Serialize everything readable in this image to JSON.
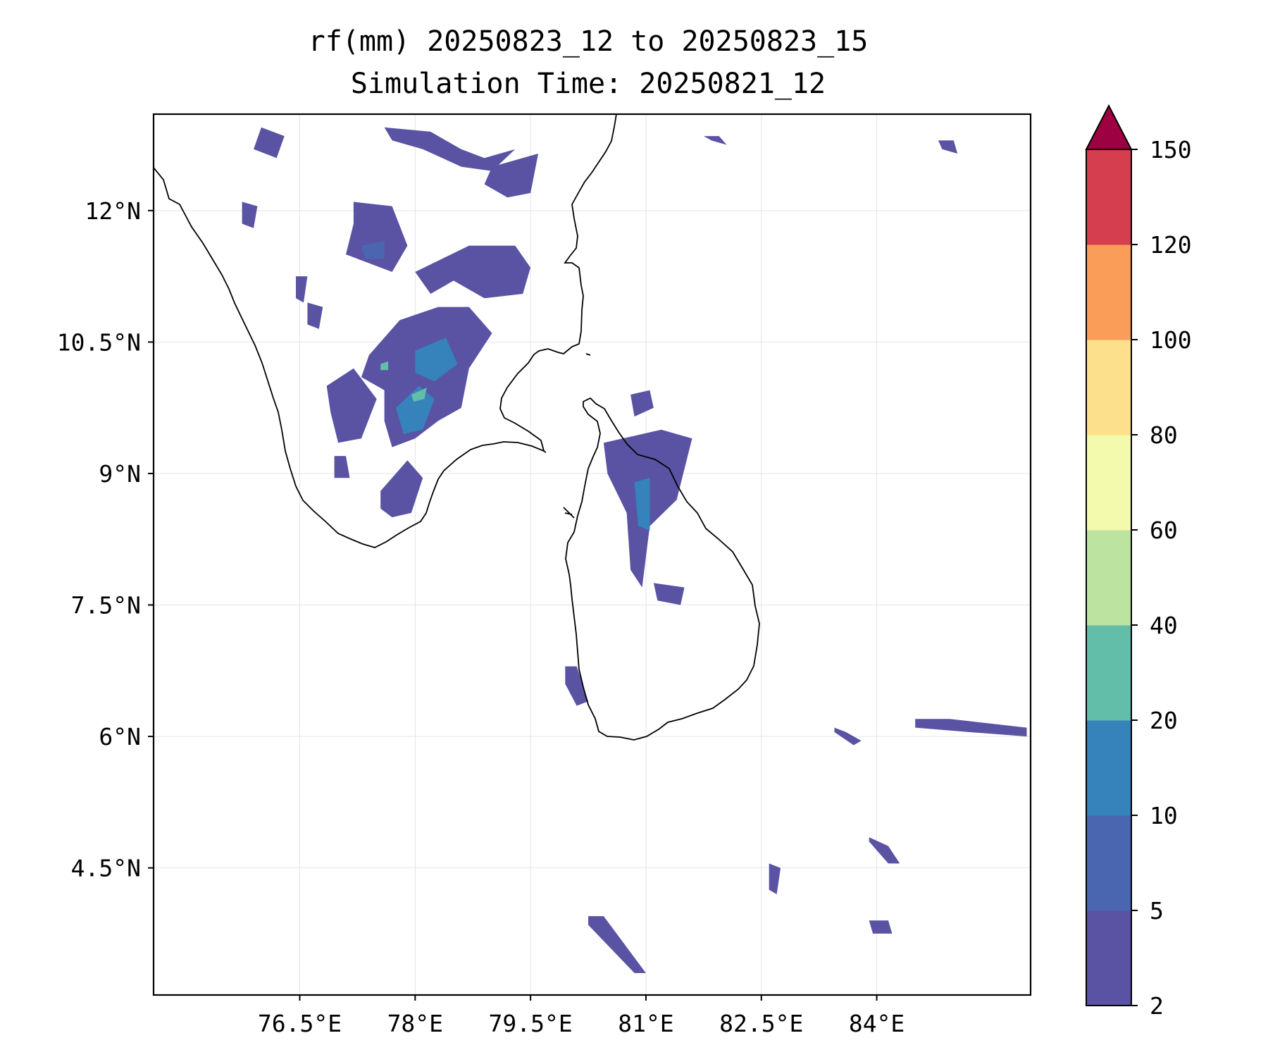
{
  "title": {
    "line1": "rf(mm) 20250823_12 to 20250823_15",
    "line2": "Simulation Time: 20250821_12"
  },
  "map": {
    "lon_range": [
      74.6,
      86.0
    ],
    "lat_range": [
      3.05,
      13.1
    ],
    "lon_ticks": [
      {
        "value": 76.5,
        "label": "76.5°E"
      },
      {
        "value": 78.0,
        "label": "78°E"
      },
      {
        "value": 79.5,
        "label": "79.5°E"
      },
      {
        "value": 81.0,
        "label": "81°E"
      },
      {
        "value": 82.5,
        "label": "82.5°E"
      },
      {
        "value": 84.0,
        "label": "84°E"
      }
    ],
    "lat_ticks": [
      {
        "value": 12.0,
        "label": "12°N"
      },
      {
        "value": 10.5,
        "label": "10.5°N"
      },
      {
        "value": 9.0,
        "label": "9°N"
      },
      {
        "value": 7.5,
        "label": "7.5°N"
      },
      {
        "value": 6.0,
        "label": "6°N"
      },
      {
        "value": 4.5,
        "label": "4.5°N"
      }
    ],
    "gridlines": true
  },
  "colorbar": {
    "levels": [
      2,
      5,
      10,
      20,
      40,
      60,
      80,
      100,
      120,
      150
    ],
    "labels": [
      "2",
      "5",
      "10",
      "20",
      "40",
      "60",
      "80",
      "100",
      "120",
      "150"
    ],
    "colors": [
      "#5a53a3",
      "#4a66b0",
      "#3682bb",
      "#62bda9",
      "#bde3a1",
      "#f3f9ad",
      "#fde08b",
      "#f99d59",
      "#d53e4f"
    ],
    "extend_color": "#9e0142"
  },
  "chart_data": {
    "type": "filled-contour-map",
    "variable": "rf(mm)",
    "period": "20250823_12 to 20250823_15",
    "simulation_time": "20250821_12",
    "xlim": [
      74.6,
      86.0
    ],
    "ylim": [
      3.05,
      13.1
    ],
    "rain_areas": [
      {
        "level": 2,
        "points": [
          [
            76.0,
            12.95
          ],
          [
            76.3,
            12.85
          ],
          [
            76.2,
            12.6
          ],
          [
            75.9,
            12.7
          ]
        ]
      },
      {
        "level": 2,
        "points": [
          [
            77.6,
            12.95
          ],
          [
            78.2,
            12.9
          ],
          [
            78.6,
            12.7
          ],
          [
            78.9,
            12.6
          ],
          [
            79.3,
            12.7
          ],
          [
            79.0,
            12.45
          ],
          [
            78.6,
            12.5
          ],
          [
            78.1,
            12.7
          ],
          [
            77.7,
            12.8
          ]
        ]
      },
      {
        "level": 2,
        "points": [
          [
            79.0,
            12.5
          ],
          [
            79.6,
            12.65
          ],
          [
            79.5,
            12.2
          ],
          [
            79.2,
            12.15
          ],
          [
            78.9,
            12.3
          ]
        ]
      },
      {
        "level": 2,
        "points": [
          [
            75.75,
            12.1
          ],
          [
            75.95,
            12.05
          ],
          [
            75.9,
            11.8
          ],
          [
            75.75,
            11.85
          ]
        ]
      },
      {
        "level": 2,
        "points": [
          [
            77.2,
            12.1
          ],
          [
            77.7,
            12.05
          ],
          [
            77.9,
            11.6
          ],
          [
            77.7,
            11.3
          ],
          [
            77.1,
            11.5
          ],
          [
            77.2,
            11.85
          ]
        ]
      },
      {
        "level": 5,
        "points": [
          [
            77.3,
            11.6
          ],
          [
            77.6,
            11.65
          ],
          [
            77.6,
            11.45
          ],
          [
            77.35,
            11.45
          ]
        ]
      },
      {
        "level": 2,
        "points": [
          [
            78.0,
            11.3
          ],
          [
            78.7,
            11.6
          ],
          [
            79.3,
            11.6
          ],
          [
            79.5,
            11.35
          ],
          [
            79.4,
            11.05
          ],
          [
            78.9,
            11.0
          ],
          [
            78.5,
            11.2
          ],
          [
            78.2,
            11.05
          ]
        ]
      },
      {
        "level": 2,
        "points": [
          [
            76.45,
            11.25
          ],
          [
            76.6,
            11.25
          ],
          [
            76.55,
            10.95
          ],
          [
            76.45,
            11.0
          ]
        ]
      },
      {
        "level": 2,
        "points": [
          [
            76.6,
            10.95
          ],
          [
            76.8,
            10.9
          ],
          [
            76.75,
            10.65
          ],
          [
            76.6,
            10.7
          ]
        ]
      },
      {
        "level": 2,
        "points": [
          [
            77.4,
            10.35
          ],
          [
            77.8,
            10.75
          ],
          [
            78.3,
            10.9
          ],
          [
            78.7,
            10.9
          ],
          [
            79.0,
            10.6
          ],
          [
            78.7,
            10.2
          ],
          [
            78.6,
            9.75
          ],
          [
            78.3,
            9.6
          ],
          [
            78.0,
            9.4
          ],
          [
            77.7,
            9.3
          ],
          [
            77.6,
            9.6
          ],
          [
            77.6,
            9.95
          ],
          [
            77.3,
            10.1
          ]
        ]
      },
      {
        "level": 10,
        "points": [
          [
            78.0,
            10.4
          ],
          [
            78.4,
            10.55
          ],
          [
            78.55,
            10.25
          ],
          [
            78.25,
            10.05
          ],
          [
            78.0,
            10.15
          ]
        ]
      },
      {
        "level": 10,
        "points": [
          [
            77.75,
            9.75
          ],
          [
            78.05,
            10.0
          ],
          [
            78.25,
            9.85
          ],
          [
            78.1,
            9.5
          ],
          [
            77.85,
            9.45
          ]
        ]
      },
      {
        "level": 20,
        "points": [
          [
            77.95,
            9.9
          ],
          [
            78.15,
            9.98
          ],
          [
            78.12,
            9.85
          ],
          [
            77.98,
            9.82
          ]
        ]
      },
      {
        "level": 20,
        "points": [
          [
            77.55,
            10.25
          ],
          [
            77.65,
            10.28
          ],
          [
            77.65,
            10.18
          ],
          [
            77.55,
            10.18
          ]
        ]
      },
      {
        "level": 2,
        "points": [
          [
            76.85,
            10.0
          ],
          [
            77.2,
            10.2
          ],
          [
            77.5,
            9.85
          ],
          [
            77.3,
            9.4
          ],
          [
            77.0,
            9.35
          ],
          [
            76.9,
            9.7
          ]
        ]
      },
      {
        "level": 2,
        "points": [
          [
            76.95,
            9.2
          ],
          [
            77.1,
            9.2
          ],
          [
            77.15,
            8.95
          ],
          [
            76.95,
            8.95
          ]
        ]
      },
      {
        "level": 2,
        "points": [
          [
            77.55,
            8.8
          ],
          [
            77.9,
            9.15
          ],
          [
            78.1,
            8.95
          ],
          [
            77.95,
            8.55
          ],
          [
            77.7,
            8.5
          ],
          [
            77.55,
            8.6
          ]
        ]
      },
      {
        "level": 2,
        "points": [
          [
            80.45,
            9.35
          ],
          [
            81.2,
            9.5
          ],
          [
            81.6,
            9.4
          ],
          [
            81.4,
            8.7
          ],
          [
            81.05,
            8.4
          ],
          [
            80.95,
            7.7
          ],
          [
            80.8,
            7.9
          ],
          [
            80.75,
            8.55
          ],
          [
            80.5,
            9.0
          ]
        ]
      },
      {
        "level": 10,
        "points": [
          [
            80.85,
            8.9
          ],
          [
            81.05,
            8.95
          ],
          [
            81.05,
            8.35
          ],
          [
            80.9,
            8.4
          ]
        ]
      },
      {
        "level": 2,
        "points": [
          [
            80.8,
            9.9
          ],
          [
            81.05,
            9.95
          ],
          [
            81.1,
            9.75
          ],
          [
            80.85,
            9.65
          ]
        ]
      },
      {
        "level": 2,
        "points": [
          [
            81.1,
            7.75
          ],
          [
            81.5,
            7.7
          ],
          [
            81.45,
            7.5
          ],
          [
            81.15,
            7.55
          ]
        ]
      },
      {
        "level": 2,
        "points": [
          [
            79.95,
            6.8
          ],
          [
            80.1,
            6.8
          ],
          [
            80.25,
            6.4
          ],
          [
            80.1,
            6.35
          ],
          [
            79.95,
            6.6
          ]
        ]
      },
      {
        "level": 2,
        "points": [
          [
            81.75,
            12.85
          ],
          [
            81.95,
            12.85
          ],
          [
            82.05,
            12.75
          ],
          [
            81.85,
            12.8
          ]
        ]
      },
      {
        "level": 2,
        "points": [
          [
            84.8,
            12.8
          ],
          [
            85.0,
            12.8
          ],
          [
            85.05,
            12.65
          ],
          [
            84.85,
            12.7
          ]
        ]
      },
      {
        "level": 2,
        "points": [
          [
            84.5,
            6.2
          ],
          [
            84.95,
            6.2
          ],
          [
            85.95,
            6.1
          ],
          [
            85.95,
            6.0
          ],
          [
            85.2,
            6.05
          ],
          [
            84.5,
            6.1
          ]
        ]
      },
      {
        "level": 2,
        "points": [
          [
            83.45,
            6.1
          ],
          [
            83.6,
            6.05
          ],
          [
            83.8,
            5.95
          ],
          [
            83.7,
            5.9
          ],
          [
            83.45,
            6.05
          ]
        ]
      },
      {
        "level": 2,
        "points": [
          [
            83.9,
            4.85
          ],
          [
            84.15,
            4.75
          ],
          [
            84.3,
            4.55
          ],
          [
            84.15,
            4.55
          ],
          [
            83.9,
            4.8
          ]
        ]
      },
      {
        "level": 2,
        "points": [
          [
            80.25,
            3.95
          ],
          [
            80.45,
            3.95
          ],
          [
            81.0,
            3.3
          ],
          [
            80.85,
            3.3
          ],
          [
            80.25,
            3.85
          ]
        ]
      },
      {
        "level": 2,
        "points": [
          [
            82.6,
            4.55
          ],
          [
            82.75,
            4.5
          ],
          [
            82.7,
            4.2
          ],
          [
            82.6,
            4.25
          ]
        ]
      },
      {
        "level": 2,
        "points": [
          [
            83.9,
            3.9
          ],
          [
            84.15,
            3.9
          ],
          [
            84.2,
            3.75
          ],
          [
            83.95,
            3.75
          ]
        ]
      }
    ]
  }
}
